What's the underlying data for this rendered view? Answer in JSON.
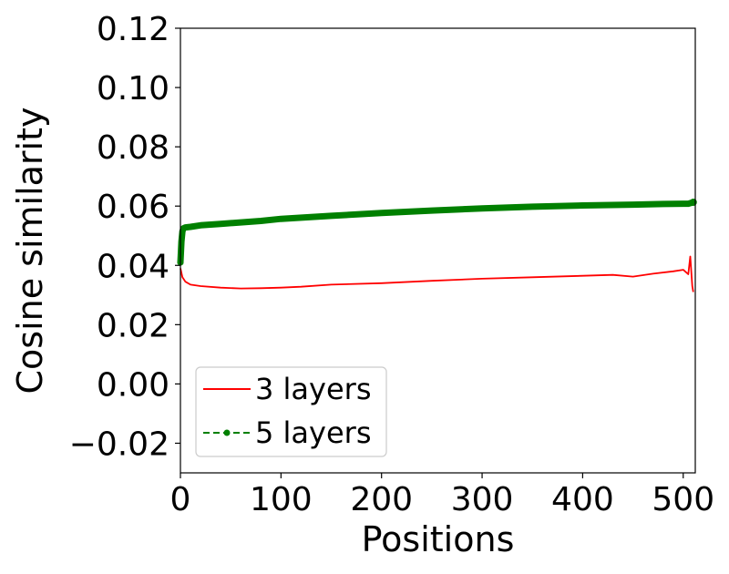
{
  "chart_data": {
    "type": "line",
    "xlabel": "Positions",
    "ylabel": "Cosine similarity",
    "xlim": [
      0,
      512
    ],
    "ylim": [
      -0.03,
      0.12
    ],
    "x_ticks": [
      0,
      100,
      200,
      300,
      400,
      500
    ],
    "x_tick_labels": [
      "0",
      "100",
      "200",
      "300",
      "400",
      "500"
    ],
    "y_ticks": [
      -0.02,
      0.0,
      0.02,
      0.04,
      0.06,
      0.08,
      0.1,
      0.12
    ],
    "y_tick_labels": [
      "−0.02",
      "0.00",
      "0.02",
      "0.04",
      "0.06",
      "0.08",
      "0.10",
      "0.12"
    ],
    "grid": false,
    "legend_position": "lower-left",
    "series": [
      {
        "name": "3 layers",
        "color": "#ff0000",
        "style": "solid",
        "x": [
          0,
          2,
          5,
          10,
          20,
          40,
          60,
          80,
          100,
          120,
          150,
          200,
          250,
          300,
          350,
          400,
          430,
          450,
          470,
          490,
          500,
          505,
          507,
          509,
          510
        ],
        "y": [
          0.039,
          0.036,
          0.0345,
          0.0335,
          0.033,
          0.0325,
          0.0322,
          0.0323,
          0.0325,
          0.0328,
          0.0335,
          0.034,
          0.0348,
          0.0355,
          0.036,
          0.0365,
          0.0368,
          0.0362,
          0.0372,
          0.038,
          0.0385,
          0.037,
          0.043,
          0.033,
          0.031
        ]
      },
      {
        "name": "5 layers",
        "color": "#008000",
        "style": "dashed-marker",
        "x": [
          0,
          1,
          2,
          3,
          5,
          10,
          20,
          40,
          60,
          80,
          100,
          150,
          200,
          250,
          300,
          350,
          400,
          450,
          480,
          500,
          505,
          510
        ],
        "y": [
          0.041,
          0.048,
          0.0515,
          0.0525,
          0.0528,
          0.053,
          0.0535,
          0.054,
          0.0545,
          0.055,
          0.0557,
          0.0567,
          0.0577,
          0.0585,
          0.0592,
          0.0598,
          0.0602,
          0.0605,
          0.0607,
          0.0608,
          0.0608,
          0.0613
        ]
      }
    ]
  }
}
